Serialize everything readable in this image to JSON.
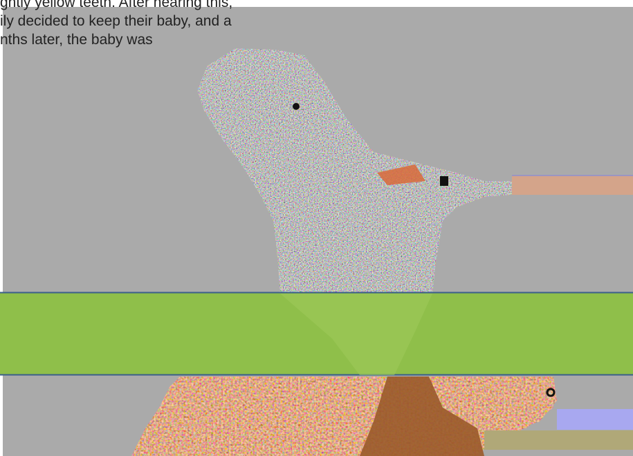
{
  "story": {
    "line1": "ghtly yellow teeth. After hearing this,",
    "line2": "ily decided to keep their baby, and a",
    "line3": "nths later, the baby was"
  },
  "colors": {
    "background": "#aaaaaa",
    "band": "#8fbf4a",
    "band_border": "#3a5f8a",
    "stripe_peach": "#d4a48a",
    "stripe_lavender": "#a8a8f0",
    "stripe_olive": "#b0a878",
    "skin_orange": "#e0784a",
    "skin_brown": "#9a5a2a"
  }
}
